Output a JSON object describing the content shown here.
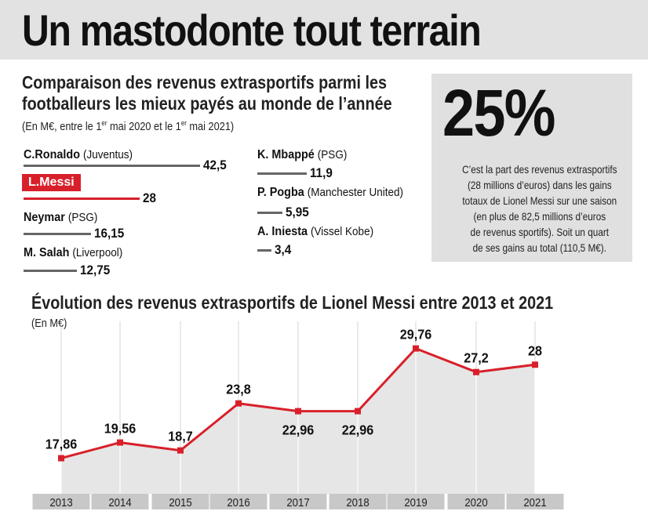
{
  "headline": "Un mastodonte tout terrain",
  "section1": {
    "title_line1": "Comparaison des revenus extrasportifs parmi les",
    "title_line2": "footballeurs les mieux payés au monde de l’année",
    "subtitle_pre": "(En M€, entre le 1",
    "subtitle_sup1": "er",
    "subtitle_mid": " mai 2020 et le 1",
    "subtitle_sup2": "er",
    "subtitle_post": " mai 2021)"
  },
  "players": [
    {
      "name": "C.Ronaldo",
      "club": "(Juventus)",
      "value": 42.5,
      "label": "42,5"
    },
    {
      "name": "L.Messi",
      "club": "",
      "value": 28,
      "label": "28"
    },
    {
      "name": "Neymar",
      "club": "(PSG)",
      "value": 16.15,
      "label": "16,15"
    },
    {
      "name": "M. Salah",
      "club": "(Liverpool)",
      "value": 12.75,
      "label": "12,75"
    },
    {
      "name": "K. Mbappé",
      "club": "(PSG)",
      "value": 11.9,
      "label": "11,9"
    },
    {
      "name": "P. Pogba",
      "club": "(Manchester United)",
      "value": 5.95,
      "label": "5,95"
    },
    {
      "name": "A. Iniesta",
      "club": "(Vissel Kobe)",
      "value": 3.4,
      "label": "3,4"
    }
  ],
  "highlight_box": {
    "big_number": "25%",
    "text": "C’est la part des revenus extrasportifs\n(28 millions d’euros) dans les gains\ntotaux de Lionel Messi sur une saison\n(en plus de 82,5 millions d’euros\nde revenus sportifs). Soit un quart\nde ses gains au total (110,5 M€)."
  },
  "section2": {
    "title": "Évolution des revenus extrasportifs de Lionel Messi entre 2013 et 2021",
    "subtitle": "(En M€)"
  },
  "colors": {
    "accent": "#d8202a",
    "bar_gray": "#666666",
    "panel_gray": "#e0e0e0",
    "area_gray": "#e6e6e6",
    "axis_band": "#c8c8c8"
  },
  "chart_data": [
    {
      "type": "bar",
      "orientation": "horizontal",
      "title": "Comparaison des revenus extrasportifs parmi les footballeurs les mieux payés au monde de l’année",
      "unit": "M€",
      "categories": [
        "C.Ronaldo",
        "L.Messi",
        "Neymar",
        "M. Salah",
        "K. Mbappé",
        "P. Pogba",
        "A. Iniesta"
      ],
      "values": [
        42.5,
        28,
        16.15,
        12.75,
        11.9,
        5.95,
        3.4
      ]
    },
    {
      "type": "line",
      "title": "Évolution des revenus extrasportifs de Lionel Messi entre 2013 et 2021",
      "unit": "M€",
      "x": [
        "2013",
        "2014",
        "2015",
        "2016",
        "2017",
        "2018",
        "2019",
        "2020",
        "2021"
      ],
      "values": [
        17.86,
        19.56,
        18.7,
        23.8,
        22.96,
        22.96,
        29.76,
        27.2,
        28
      ],
      "labels": [
        "17,86",
        "19,56",
        "18,7",
        "23,8",
        "22,96",
        "22,96",
        "29,76",
        "27,2",
        "28"
      ],
      "label_position": [
        "above",
        "above",
        "above",
        "above",
        "below",
        "below",
        "above",
        "above",
        "above"
      ],
      "ylim": [
        14,
        31
      ]
    }
  ]
}
